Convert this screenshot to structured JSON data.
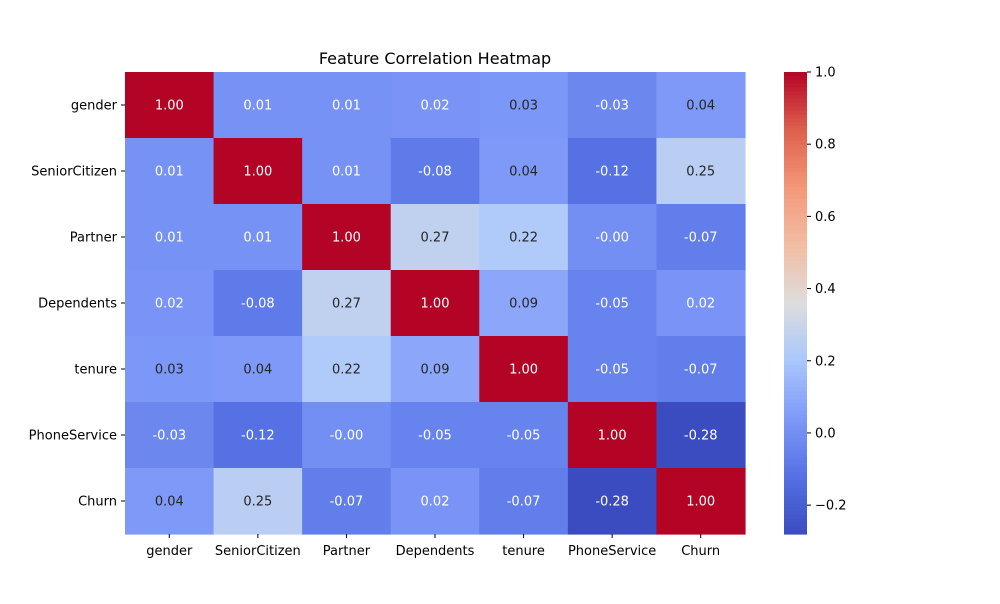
{
  "chart_data": {
    "type": "heatmap",
    "title": "Feature Correlation Heatmap",
    "rows": [
      "gender",
      "SeniorCitizen",
      "Partner",
      "Dependents",
      "tenure",
      "PhoneService",
      "Churn"
    ],
    "columns": [
      "gender",
      "SeniorCitizen",
      "Partner",
      "Dependents",
      "tenure",
      "PhoneService",
      "Churn"
    ],
    "values": [
      [
        1.0,
        0.01,
        0.01,
        0.02,
        0.03,
        -0.03,
        0.04
      ],
      [
        0.01,
        1.0,
        0.01,
        -0.08,
        0.04,
        -0.12,
        0.25
      ],
      [
        0.01,
        0.01,
        1.0,
        0.27,
        0.22,
        -0.0,
        -0.07
      ],
      [
        0.02,
        -0.08,
        0.27,
        1.0,
        0.09,
        -0.05,
        0.02
      ],
      [
        0.03,
        0.04,
        0.22,
        0.09,
        1.0,
        -0.05,
        -0.07
      ],
      [
        -0.03,
        -0.12,
        -0.0,
        -0.05,
        -0.05,
        1.0,
        -0.28
      ],
      [
        0.04,
        0.25,
        -0.07,
        0.02,
        -0.07,
        -0.28,
        1.0
      ]
    ],
    "cell_labels": [
      [
        "1.00",
        "0.01",
        "0.01",
        "0.02",
        "0.03",
        "-0.03",
        "0.04"
      ],
      [
        "0.01",
        "1.00",
        "0.01",
        "-0.08",
        "0.04",
        "-0.12",
        "0.25"
      ],
      [
        "0.01",
        "0.01",
        "1.00",
        "0.27",
        "0.22",
        "-0.00",
        "-0.07"
      ],
      [
        "0.02",
        "-0.08",
        "0.27",
        "1.00",
        "0.09",
        "-0.05",
        "0.02"
      ],
      [
        "0.03",
        "0.04",
        "0.22",
        "0.09",
        "1.00",
        "-0.05",
        "-0.07"
      ],
      [
        "-0.03",
        "-0.12",
        "-0.00",
        "-0.05",
        "-0.05",
        "1.00",
        "-0.28"
      ],
      [
        "0.04",
        "0.25",
        "-0.07",
        "0.02",
        "-0.07",
        "-0.28",
        "1.00"
      ]
    ],
    "colormap": "coolwarm",
    "vmin": -0.28,
    "vmax": 1.0,
    "colorbar": {
      "ticks": [
        -0.2,
        0.0,
        0.2,
        0.4,
        0.6,
        0.8,
        1.0
      ],
      "tick_labels": [
        "−0.2",
        "0.0",
        "0.2",
        "0.4",
        "0.6",
        "0.8",
        "1.0"
      ]
    },
    "annotations": true,
    "grid": false
  }
}
